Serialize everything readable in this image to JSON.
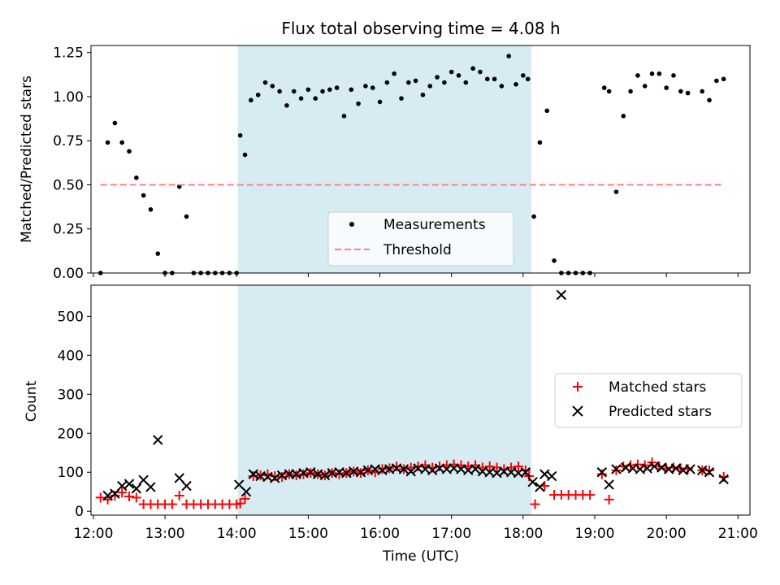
{
  "chart_data": [
    {
      "type": "scatter",
      "title": "Flux total observing time = 4.08 h",
      "xlabel": "",
      "ylabel": "Matched/Predicted stars",
      "xlim": [
        "11:58",
        "21:10"
      ],
      "ylim": [
        0,
        1.29
      ],
      "yticks": [
        "0.00",
        "0.25",
        "0.50",
        "0.75",
        "1.00",
        "1.25"
      ],
      "shaded_span": [
        "14:01",
        "18:07"
      ],
      "legend": {
        "placement": "lower-center",
        "entries": [
          "Measurements",
          "Threshold"
        ]
      },
      "series": [
        {
          "name": "Measurements",
          "marker": "dot",
          "color": "#000000",
          "x": [
            "12:06",
            "12:12",
            "12:18",
            "12:24",
            "12:30",
            "12:36",
            "12:42",
            "12:48",
            "12:54",
            "13:00",
            "13:06",
            "13:12",
            "13:18",
            "13:24",
            "13:30",
            "13:36",
            "13:42",
            "13:48",
            "13:54",
            "14:00",
            "14:03",
            "14:07",
            "14:12",
            "14:18",
            "14:24",
            "14:30",
            "14:36",
            "14:42",
            "14:48",
            "14:54",
            "15:00",
            "15:06",
            "15:12",
            "15:18",
            "15:24",
            "15:30",
            "15:36",
            "15:42",
            "15:48",
            "15:54",
            "16:00",
            "16:06",
            "16:12",
            "16:18",
            "16:24",
            "16:30",
            "16:36",
            "16:42",
            "16:48",
            "16:54",
            "17:00",
            "17:06",
            "17:12",
            "17:18",
            "17:24",
            "17:30",
            "17:36",
            "17:42",
            "17:48",
            "17:54",
            "18:00",
            "18:04",
            "18:09",
            "18:14",
            "18:20",
            "18:26",
            "18:32",
            "18:38",
            "18:44",
            "18:50",
            "18:56",
            "19:08",
            "19:12",
            "19:18",
            "19:24",
            "19:30",
            "19:36",
            "19:42",
            "19:48",
            "19:54",
            "20:00",
            "20:06",
            "20:12",
            "20:18",
            "20:30",
            "20:36",
            "20:42",
            "20:48"
          ],
          "y": [
            0.0,
            0.74,
            0.85,
            0.74,
            0.69,
            0.54,
            0.44,
            0.36,
            0.11,
            0.0,
            0.0,
            0.49,
            0.32,
            0.0,
            0.0,
            0.0,
            0.0,
            0.0,
            0.0,
            0.0,
            0.78,
            0.67,
            0.98,
            1.01,
            1.08,
            1.06,
            1.03,
            0.95,
            1.03,
            0.99,
            1.04,
            0.99,
            1.03,
            1.04,
            1.05,
            0.89,
            1.04,
            0.96,
            1.06,
            1.05,
            0.97,
            1.08,
            1.13,
            0.99,
            1.08,
            1.09,
            1.01,
            1.06,
            1.11,
            1.08,
            1.14,
            1.12,
            1.08,
            1.16,
            1.14,
            1.1,
            1.1,
            1.06,
            1.23,
            1.07,
            1.12,
            1.1,
            0.32,
            0.74,
            0.92,
            0.07,
            0.0,
            0.0,
            0.0,
            0.0,
            0.0,
            1.05,
            1.03,
            0.46,
            0.89,
            1.03,
            1.12,
            1.06,
            1.13,
            1.13,
            1.05,
            1.12,
            1.03,
            1.02,
            1.03,
            0.98,
            1.09,
            1.1
          ]
        },
        {
          "name": "Threshold",
          "marker": "dashed-line",
          "color": "#ff8080",
          "x": [
            "12:06",
            "20:47"
          ],
          "y": [
            0.5,
            0.5
          ]
        }
      ]
    },
    {
      "type": "scatter",
      "title": "",
      "xlabel": "Time (UTC)",
      "ylabel": "Count",
      "xlim": [
        "11:58",
        "21:10"
      ],
      "ylim": [
        -10,
        580
      ],
      "yticks": [
        "0",
        "100",
        "200",
        "300",
        "400",
        "500"
      ],
      "xticks": [
        "12:00",
        "13:00",
        "14:00",
        "15:00",
        "16:00",
        "17:00",
        "18:00",
        "19:00",
        "20:00",
        "21:00"
      ],
      "shaded_span": [
        "14:01",
        "18:07"
      ],
      "legend": {
        "placement": "center-right",
        "entries": [
          "Matched stars",
          "Predicted stars"
        ]
      },
      "series": [
        {
          "name": "Matched stars",
          "marker": "plus",
          "color": "#ff0000",
          "x": [
            "12:06",
            "12:12",
            "12:18",
            "12:24",
            "12:30",
            "12:36",
            "12:42",
            "12:48",
            "12:54",
            "13:00",
            "13:06",
            "13:12",
            "13:18",
            "13:24",
            "13:30",
            "13:36",
            "13:42",
            "13:48",
            "13:54",
            "14:00",
            "14:03",
            "14:07",
            "14:14",
            "14:20",
            "14:26",
            "14:32",
            "14:38",
            "14:44",
            "14:50",
            "14:56",
            "15:02",
            "15:08",
            "15:14",
            "15:20",
            "15:26",
            "15:32",
            "15:38",
            "15:44",
            "15:50",
            "15:56",
            "16:02",
            "16:08",
            "16:14",
            "16:20",
            "16:26",
            "16:32",
            "16:38",
            "16:44",
            "16:50",
            "16:56",
            "17:02",
            "17:08",
            "17:14",
            "17:20",
            "17:26",
            "17:32",
            "17:38",
            "17:44",
            "17:50",
            "17:56",
            "18:02",
            "18:05",
            "18:10",
            "18:18",
            "18:26",
            "18:32",
            "18:38",
            "18:44",
            "18:50",
            "18:56",
            "19:06",
            "19:12",
            "19:18",
            "19:24",
            "19:30",
            "19:36",
            "19:42",
            "19:48",
            "19:54",
            "20:00",
            "20:06",
            "20:12",
            "20:18",
            "20:30",
            "20:36",
            "20:48"
          ],
          "y": [
            35,
            30,
            40,
            48,
            38,
            35,
            18,
            18,
            18,
            18,
            18,
            40,
            18,
            18,
            18,
            18,
            18,
            18,
            18,
            18,
            20,
            32,
            90,
            92,
            95,
            90,
            88,
            95,
            92,
            95,
            98,
            95,
            92,
            98,
            95,
            98,
            102,
            98,
            105,
            100,
            108,
            110,
            115,
            108,
            112,
            115,
            118,
            112,
            115,
            118,
            120,
            118,
            115,
            118,
            112,
            115,
            112,
            108,
            112,
            115,
            105,
            90,
            18,
            65,
            42,
            42,
            42,
            42,
            42,
            42,
            95,
            30,
            105,
            115,
            118,
            120,
            118,
            125,
            115,
            110,
            112,
            110,
            108,
            105,
            105,
            88
          ]
        },
        {
          "name": "Predicted stars",
          "marker": "x",
          "color": "#000000",
          "x": [
            "12:12",
            "12:18",
            "12:24",
            "12:30",
            "12:36",
            "12:42",
            "12:48",
            "12:54",
            "13:12",
            "13:18",
            "14:02",
            "14:08",
            "14:14",
            "14:20",
            "14:26",
            "14:32",
            "14:38",
            "14:44",
            "14:50",
            "14:56",
            "15:02",
            "15:08",
            "15:14",
            "15:20",
            "15:26",
            "15:32",
            "15:38",
            "15:44",
            "15:50",
            "15:56",
            "16:02",
            "16:08",
            "16:14",
            "16:20",
            "16:26",
            "16:32",
            "16:38",
            "16:44",
            "16:50",
            "16:56",
            "17:02",
            "17:08",
            "17:14",
            "17:20",
            "17:26",
            "17:32",
            "17:38",
            "17:44",
            "17:50",
            "17:56",
            "18:02",
            "18:08",
            "18:14",
            "18:18",
            "18:24",
            "18:32",
            "19:06",
            "19:12",
            "19:18",
            "19:26",
            "19:32",
            "19:38",
            "19:44",
            "19:50",
            "19:56",
            "20:02",
            "20:08",
            "20:14",
            "20:20",
            "20:30",
            "20:36",
            "20:48"
          ],
          "y": [
            40,
            45,
            65,
            70,
            58,
            80,
            62,
            183,
            85,
            65,
            68,
            50,
            95,
            90,
            88,
            85,
            92,
            95,
            95,
            98,
            100,
            95,
            92,
            98,
            100,
            98,
            102,
            100,
            105,
            108,
            105,
            108,
            110,
            108,
            102,
            110,
            108,
            105,
            110,
            108,
            110,
            108,
            105,
            108,
            102,
            100,
            98,
            102,
            100,
            98,
            100,
            75,
            62,
            95,
            90,
            555,
            100,
            68,
            108,
            112,
            110,
            108,
            110,
            115,
            112,
            108,
            110,
            105,
            108,
            105,
            100,
            82
          ]
        }
      ]
    }
  ]
}
